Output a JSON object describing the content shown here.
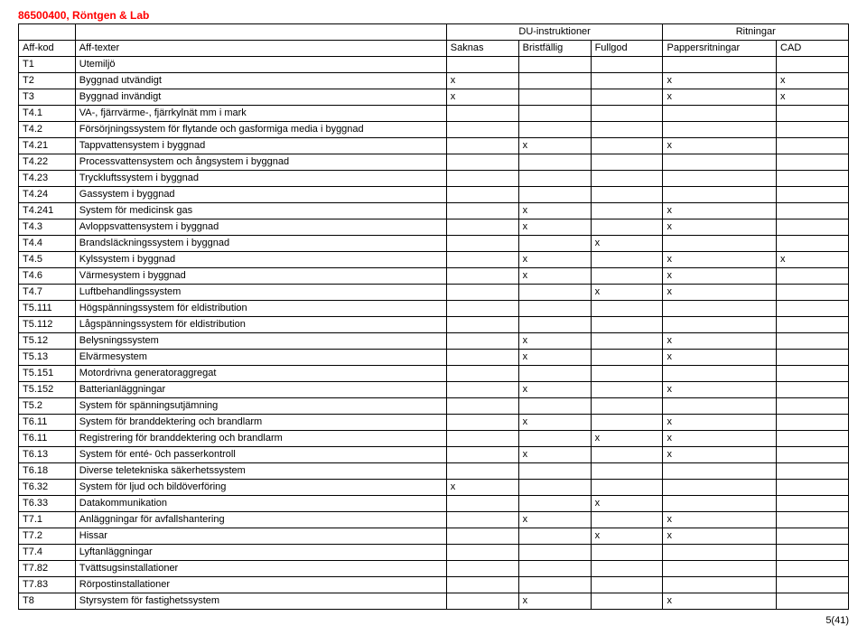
{
  "title": "86500400, Röntgen & Lab",
  "headers": {
    "group_du": "DU-instruktioner",
    "group_rit": "Ritningar",
    "code": "Aff-kod",
    "text": "Aff-texter",
    "saknas": "Saknas",
    "bristfallig": "Bristfällig",
    "fullgod": "Fullgod",
    "pappers": "Pappersritningar",
    "cad": "CAD"
  },
  "rows": [
    {
      "code": "T1",
      "text": "Utemiljö",
      "s": "",
      "b": "",
      "f": "",
      "p": "",
      "c": ""
    },
    {
      "code": "T2",
      "text": "Byggnad utvändigt",
      "s": "x",
      "b": "",
      "f": "",
      "p": "x",
      "c": "x"
    },
    {
      "code": "T3",
      "text": "Byggnad invändigt",
      "s": "x",
      "b": "",
      "f": "",
      "p": "x",
      "c": "x"
    },
    {
      "code": "T4.1",
      "text": "VA-, fjärrvärme-, fjärrkylnät mm i mark",
      "s": "",
      "b": "",
      "f": "",
      "p": "",
      "c": ""
    },
    {
      "code": "T4.2",
      "text": "Försörjningssystem för flytande och gasformiga media i byggnad",
      "s": "",
      "b": "",
      "f": "",
      "p": "",
      "c": ""
    },
    {
      "code": "T4.21",
      "text": "Tappvattensystem i byggnad",
      "s": "",
      "b": "x",
      "f": "",
      "p": "x",
      "c": ""
    },
    {
      "code": "T4.22",
      "text": "Processvattensystem och ångsystem i byggnad",
      "s": "",
      "b": "",
      "f": "",
      "p": "",
      "c": ""
    },
    {
      "code": "T4.23",
      "text": "Tryckluftssystem i byggnad",
      "s": "",
      "b": "",
      "f": "",
      "p": "",
      "c": ""
    },
    {
      "code": "T4.24",
      "text": "Gassystem i byggnad",
      "s": "",
      "b": "",
      "f": "",
      "p": "",
      "c": ""
    },
    {
      "code": "T4.241",
      "text": "System för medicinsk gas",
      "s": "",
      "b": "x",
      "f": "",
      "p": "x",
      "c": ""
    },
    {
      "code": "T4.3",
      "text": "Avloppsvattensystem i byggnad",
      "s": "",
      "b": "x",
      "f": "",
      "p": "x",
      "c": ""
    },
    {
      "code": "T4.4",
      "text": "Brandsläckningssystem i byggnad",
      "s": "",
      "b": "",
      "f": "x",
      "p": "",
      "c": ""
    },
    {
      "code": "T4.5",
      "text": "Kylssystem i byggnad",
      "s": "",
      "b": "x",
      "f": "",
      "p": "x",
      "c": "x"
    },
    {
      "code": "T4.6",
      "text": "Värmesystem i byggnad",
      "s": "",
      "b": "x",
      "f": "",
      "p": "x",
      "c": ""
    },
    {
      "code": "T4.7",
      "text": "Luftbehandlingssystem",
      "s": "",
      "b": "",
      "f": "x",
      "p": "x",
      "c": ""
    },
    {
      "code": "T5.111",
      "text": "Högspänningssystem för eldistribution",
      "s": "",
      "b": "",
      "f": "",
      "p": "",
      "c": ""
    },
    {
      "code": "T5.112",
      "text": "Lågspänningssystem för eldistribution",
      "s": "",
      "b": "",
      "f": "",
      "p": "",
      "c": ""
    },
    {
      "code": "T5.12",
      "text": "Belysningssystem",
      "s": "",
      "b": "x",
      "f": "",
      "p": "x",
      "c": ""
    },
    {
      "code": "T5.13",
      "text": "Elvärmesystem",
      "s": "",
      "b": "x",
      "f": "",
      "p": "x",
      "c": ""
    },
    {
      "code": "T5.151",
      "text": "Motordrivna generatoraggregat",
      "s": "",
      "b": "",
      "f": "",
      "p": "",
      "c": ""
    },
    {
      "code": "T5.152",
      "text": "Batterianläggningar",
      "s": "",
      "b": "x",
      "f": "",
      "p": "x",
      "c": ""
    },
    {
      "code": "T5.2",
      "text": "System för spänningsutjämning",
      "s": "",
      "b": "",
      "f": "",
      "p": "",
      "c": ""
    },
    {
      "code": "T6.11",
      "text": "System för branddektering och brandlarm",
      "s": "",
      "b": "x",
      "f": "",
      "p": "x",
      "c": ""
    },
    {
      "code": "T6.11",
      "text": "Registrering för branddektering och brandlarm",
      "s": "",
      "b": "",
      "f": "x",
      "p": "x",
      "c": ""
    },
    {
      "code": "T6.13",
      "text": "System för enté- 0ch passerkontroll",
      "s": "",
      "b": "x",
      "f": "",
      "p": "x",
      "c": ""
    },
    {
      "code": "T6.18",
      "text": "Diverse teletekniska säkerhetssystem",
      "s": "",
      "b": "",
      "f": "",
      "p": "",
      "c": ""
    },
    {
      "code": "T6.32",
      "text": "System för ljud och bildöverföring",
      "s": "x",
      "b": "",
      "f": "",
      "p": "",
      "c": ""
    },
    {
      "code": "T6.33",
      "text": "Datakommunikation",
      "s": "",
      "b": "",
      "f": "x",
      "p": "",
      "c": ""
    },
    {
      "code": "T7.1",
      "text": "Anläggningar för avfallshantering",
      "s": "",
      "b": "x",
      "f": "",
      "p": "x",
      "c": ""
    },
    {
      "code": "T7.2",
      "text": "Hissar",
      "s": "",
      "b": "",
      "f": "x",
      "p": "x",
      "c": ""
    },
    {
      "code": "T7.4",
      "text": "Lyftanläggningar",
      "s": "",
      "b": "",
      "f": "",
      "p": "",
      "c": ""
    },
    {
      "code": "T7.82",
      "text": "Tvättsugsinstallationer",
      "s": "",
      "b": "",
      "f": "",
      "p": "",
      "c": ""
    },
    {
      "code": "T7.83",
      "text": "Rörpostinstallationer",
      "s": "",
      "b": "",
      "f": "",
      "p": "",
      "c": ""
    },
    {
      "code": "T8",
      "text": "Styrsystem för fastighetssystem",
      "s": "",
      "b": "x",
      "f": "",
      "p": "x",
      "c": ""
    }
  ],
  "page_num": "5(41)"
}
